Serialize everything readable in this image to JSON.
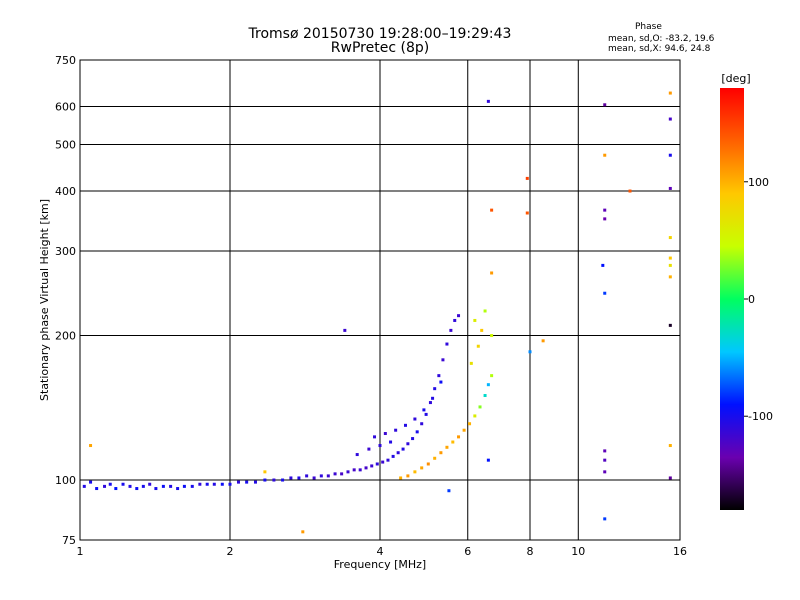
{
  "header": {
    "title_line1": "Tromsø 20150730 19:28:00–19:29:43",
    "title_line2": "RwPretec (8p)",
    "stats_heading": "Phase",
    "stats_o": "mean, sd,O: -83.2, 19.6",
    "stats_x": "mean, sd,X:  94.6, 24.8"
  },
  "chart_data": {
    "type": "scatter",
    "xlabel": "Frequency [MHz]",
    "ylabel": "Stationary phase Virtual Height [km]",
    "x_scale": "log",
    "y_scale": "log",
    "xlim": [
      1,
      16
    ],
    "ylim": [
      75,
      750
    ],
    "x_ticks": [
      {
        "value": 1,
        "label": "1"
      },
      {
        "value": 2,
        "label": "2"
      },
      {
        "value": 4,
        "label": "4"
      },
      {
        "value": 6,
        "label": "6"
      },
      {
        "value": 8,
        "label": "8"
      },
      {
        "value": 10,
        "label": "10"
      },
      {
        "value": 16,
        "label": "16"
      }
    ],
    "y_ticks": [
      {
        "value": 75,
        "label": "75"
      },
      {
        "value": 100,
        "label": "100"
      },
      {
        "value": 200,
        "label": "200"
      },
      {
        "value": 300,
        "label": "300"
      },
      {
        "value": 400,
        "label": "400"
      },
      {
        "value": 500,
        "label": "500"
      },
      {
        "value": 600,
        "label": "600"
      },
      {
        "value": 750,
        "label": "750"
      }
    ],
    "grid": true,
    "colorbar": {
      "label": "[deg]",
      "range": [
        -180,
        180
      ],
      "ticks": [
        {
          "value": 100,
          "label": "100"
        },
        {
          "value": 0,
          "label": "0"
        },
        {
          "value": -100,
          "label": "-100"
        }
      ],
      "colors": [
        "#000000",
        "#6a00b0",
        "#0010ff",
        "#00c8ff",
        "#00ff60",
        "#c8ff00",
        "#ffc800",
        "#ff6000",
        "#ff0000"
      ]
    },
    "points": [
      {
        "x": 1.02,
        "y": 97,
        "phase": -105
      },
      {
        "x": 1.05,
        "y": 99,
        "phase": -100
      },
      {
        "x": 1.08,
        "y": 96,
        "phase": -95
      },
      {
        "x": 1.12,
        "y": 97,
        "phase": -110
      },
      {
        "x": 1.15,
        "y": 98,
        "phase": -100
      },
      {
        "x": 1.18,
        "y": 96,
        "phase": -90
      },
      {
        "x": 1.22,
        "y": 98,
        "phase": -100
      },
      {
        "x": 1.26,
        "y": 97,
        "phase": -105
      },
      {
        "x": 1.3,
        "y": 96,
        "phase": -95
      },
      {
        "x": 1.34,
        "y": 97,
        "phase": -100
      },
      {
        "x": 1.38,
        "y": 98,
        "phase": -110
      },
      {
        "x": 1.42,
        "y": 96,
        "phase": -100
      },
      {
        "x": 1.47,
        "y": 97,
        "phase": -95
      },
      {
        "x": 1.52,
        "y": 97,
        "phase": -105
      },
      {
        "x": 1.57,
        "y": 96,
        "phase": -100
      },
      {
        "x": 1.62,
        "y": 97,
        "phase": -95
      },
      {
        "x": 1.68,
        "y": 97,
        "phase": -100
      },
      {
        "x": 1.74,
        "y": 98,
        "phase": -110
      },
      {
        "x": 1.8,
        "y": 98,
        "phase": -100
      },
      {
        "x": 1.86,
        "y": 98,
        "phase": -105
      },
      {
        "x": 1.93,
        "y": 98,
        "phase": -95
      },
      {
        "x": 2.0,
        "y": 98,
        "phase": -100
      },
      {
        "x": 2.08,
        "y": 99,
        "phase": -110
      },
      {
        "x": 2.16,
        "y": 99,
        "phase": -100
      },
      {
        "x": 2.25,
        "y": 99,
        "phase": -105
      },
      {
        "x": 2.35,
        "y": 100,
        "phase": -100
      },
      {
        "x": 2.45,
        "y": 100,
        "phase": -110
      },
      {
        "x": 2.55,
        "y": 100,
        "phase": -100
      },
      {
        "x": 2.65,
        "y": 101,
        "phase": -110
      },
      {
        "x": 2.75,
        "y": 101,
        "phase": -105
      },
      {
        "x": 2.85,
        "y": 102,
        "phase": -110
      },
      {
        "x": 2.95,
        "y": 101,
        "phase": -115
      },
      {
        "x": 3.05,
        "y": 102,
        "phase": -110
      },
      {
        "x": 3.15,
        "y": 102,
        "phase": -115
      },
      {
        "x": 3.25,
        "y": 103,
        "phase": -115
      },
      {
        "x": 3.35,
        "y": 103,
        "phase": -120
      },
      {
        "x": 3.45,
        "y": 104,
        "phase": -115
      },
      {
        "x": 3.55,
        "y": 105,
        "phase": -120
      },
      {
        "x": 3.65,
        "y": 105,
        "phase": -115
      },
      {
        "x": 3.75,
        "y": 106,
        "phase": -120
      },
      {
        "x": 3.85,
        "y": 107,
        "phase": -115
      },
      {
        "x": 3.95,
        "y": 108,
        "phase": -110
      },
      {
        "x": 4.05,
        "y": 109,
        "phase": -115
      },
      {
        "x": 4.15,
        "y": 110,
        "phase": -110
      },
      {
        "x": 4.25,
        "y": 112,
        "phase": -105
      },
      {
        "x": 4.35,
        "y": 114,
        "phase": -110
      },
      {
        "x": 4.45,
        "y": 116,
        "phase": -105
      },
      {
        "x": 4.55,
        "y": 119,
        "phase": -110
      },
      {
        "x": 4.65,
        "y": 122,
        "phase": -105
      },
      {
        "x": 4.75,
        "y": 126,
        "phase": -100
      },
      {
        "x": 4.85,
        "y": 131,
        "phase": -110
      },
      {
        "x": 4.95,
        "y": 137,
        "phase": -105
      },
      {
        "x": 5.05,
        "y": 145,
        "phase": -110
      },
      {
        "x": 5.15,
        "y": 155,
        "phase": -105
      },
      {
        "x": 5.25,
        "y": 165,
        "phase": -110
      },
      {
        "x": 5.35,
        "y": 178,
        "phase": -115
      },
      {
        "x": 5.45,
        "y": 192,
        "phase": -110
      },
      {
        "x": 5.55,
        "y": 205,
        "phase": -115
      },
      {
        "x": 5.65,
        "y": 215,
        "phase": -110
      },
      {
        "x": 5.75,
        "y": 220,
        "phase": -115
      },
      {
        "x": 3.9,
        "y": 123,
        "phase": -110
      },
      {
        "x": 4.1,
        "y": 125,
        "phase": -115
      },
      {
        "x": 4.3,
        "y": 127,
        "phase": -110
      },
      {
        "x": 4.5,
        "y": 130,
        "phase": -105
      },
      {
        "x": 4.7,
        "y": 134,
        "phase": -110
      },
      {
        "x": 4.9,
        "y": 140,
        "phase": -100
      },
      {
        "x": 5.1,
        "y": 148,
        "phase": -105
      },
      {
        "x": 5.3,
        "y": 160,
        "phase": -95
      },
      {
        "x": 3.6,
        "y": 113,
        "phase": -110
      },
      {
        "x": 3.8,
        "y": 116,
        "phase": -115
      },
      {
        "x": 4.0,
        "y": 118,
        "phase": -110
      },
      {
        "x": 4.2,
        "y": 120,
        "phase": -105
      },
      {
        "x": 4.4,
        "y": 101,
        "phase": 100
      },
      {
        "x": 4.55,
        "y": 102,
        "phase": 110
      },
      {
        "x": 4.7,
        "y": 104,
        "phase": 95
      },
      {
        "x": 4.85,
        "y": 106,
        "phase": 105
      },
      {
        "x": 5.0,
        "y": 108,
        "phase": 115
      },
      {
        "x": 5.15,
        "y": 111,
        "phase": 100
      },
      {
        "x": 5.3,
        "y": 114,
        "phase": 110
      },
      {
        "x": 5.45,
        "y": 117,
        "phase": 105
      },
      {
        "x": 5.6,
        "y": 120,
        "phase": 95
      },
      {
        "x": 5.75,
        "y": 123,
        "phase": 110
      },
      {
        "x": 5.9,
        "y": 127,
        "phase": 105
      },
      {
        "x": 6.05,
        "y": 131,
        "phase": 100
      },
      {
        "x": 6.2,
        "y": 136,
        "phase": 60
      },
      {
        "x": 6.35,
        "y": 142,
        "phase": 30
      },
      {
        "x": 6.5,
        "y": 150,
        "phase": -30
      },
      {
        "x": 6.6,
        "y": 158,
        "phase": -50
      },
      {
        "x": 6.7,
        "y": 165,
        "phase": 40
      },
      {
        "x": 6.1,
        "y": 175,
        "phase": 70
      },
      {
        "x": 6.3,
        "y": 190,
        "phase": 80
      },
      {
        "x": 6.4,
        "y": 205,
        "phase": 90
      },
      {
        "x": 6.2,
        "y": 215,
        "phase": 60
      },
      {
        "x": 6.5,
        "y": 225,
        "phase": 40
      },
      {
        "x": 6.7,
        "y": 200,
        "phase": 50
      },
      {
        "x": 2.35,
        "y": 104,
        "phase": 90
      },
      {
        "x": 2.8,
        "y": 78,
        "phase": 110
      },
      {
        "x": 1.05,
        "y": 118,
        "phase": 105
      },
      {
        "x": 3.4,
        "y": 205,
        "phase": -115
      },
      {
        "x": 6.6,
        "y": 615,
        "phase": -110
      },
      {
        "x": 6.7,
        "y": 365,
        "phase": 140
      },
      {
        "x": 6.7,
        "y": 270,
        "phase": 110
      },
      {
        "x": 6.6,
        "y": 110,
        "phase": -90
      },
      {
        "x": 7.9,
        "y": 425,
        "phase": 150
      },
      {
        "x": 7.9,
        "y": 360,
        "phase": 140
      },
      {
        "x": 8.0,
        "y": 185,
        "phase": -60
      },
      {
        "x": 8.5,
        "y": 195,
        "phase": 110
      },
      {
        "x": 5.5,
        "y": 95,
        "phase": -80
      },
      {
        "x": 11.3,
        "y": 605,
        "phase": -140
      },
      {
        "x": 11.3,
        "y": 475,
        "phase": 110
      },
      {
        "x": 11.3,
        "y": 365,
        "phase": -130
      },
      {
        "x": 11.3,
        "y": 350,
        "phase": -135
      },
      {
        "x": 11.2,
        "y": 280,
        "phase": -90
      },
      {
        "x": 11.3,
        "y": 245,
        "phase": -80
      },
      {
        "x": 11.3,
        "y": 115,
        "phase": -130
      },
      {
        "x": 11.3,
        "y": 110,
        "phase": -125
      },
      {
        "x": 11.3,
        "y": 104,
        "phase": -130
      },
      {
        "x": 11.3,
        "y": 83,
        "phase": -80
      },
      {
        "x": 12.7,
        "y": 400,
        "phase": 140
      },
      {
        "x": 15.3,
        "y": 640,
        "phase": 110
      },
      {
        "x": 15.3,
        "y": 565,
        "phase": -120
      },
      {
        "x": 15.3,
        "y": 475,
        "phase": -100
      },
      {
        "x": 15.3,
        "y": 405,
        "phase": -130
      },
      {
        "x": 15.3,
        "y": 320,
        "phase": 80
      },
      {
        "x": 15.3,
        "y": 290,
        "phase": 90
      },
      {
        "x": 15.3,
        "y": 280,
        "phase": 70
      },
      {
        "x": 15.3,
        "y": 265,
        "phase": 100
      },
      {
        "x": 15.3,
        "y": 210,
        "phase": -170
      },
      {
        "x": 15.3,
        "y": 118,
        "phase": 100
      },
      {
        "x": 15.3,
        "y": 101,
        "phase": -140
      }
    ]
  }
}
